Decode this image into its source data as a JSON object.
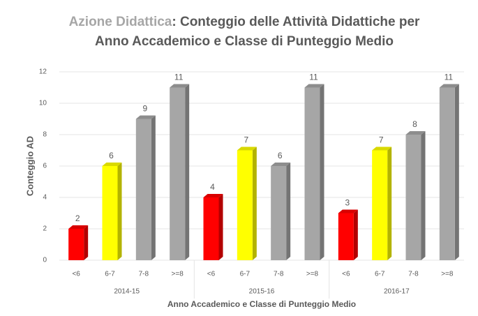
{
  "chart_data": {
    "type": "bar3d",
    "title_highlight": "Azione Didattica",
    "title": ": Conteggio delle Attività Didattiche per Anno Accademico e Classe di Punteggio Medio",
    "y_label": "Conteggio AD",
    "x_label": "Anno Accademico e Classe di Punteggio Medio",
    "groups": [
      {
        "name": "2014-15",
        "categories": [
          "<6",
          "6-7",
          "7-8",
          ">=8"
        ],
        "values": [
          2,
          6,
          9,
          11
        ]
      },
      {
        "name": "2015-16",
        "categories": [
          "<6",
          "6-7",
          "7-8",
          ">=8"
        ],
        "values": [
          4,
          7,
          6,
          11
        ]
      },
      {
        "name": "2016-17",
        "categories": [
          "<6",
          "6-7",
          "7-8",
          ">=8"
        ],
        "values": [
          3,
          7,
          8,
          11
        ]
      }
    ],
    "colors": [
      "#ff0000",
      "#ffff00",
      "#a6a6a6",
      "#a6a6a6"
    ],
    "ylim": [
      0,
      12
    ],
    "yticks": [
      0,
      2,
      4,
      6,
      8,
      10,
      12
    ],
    "grid": true
  }
}
